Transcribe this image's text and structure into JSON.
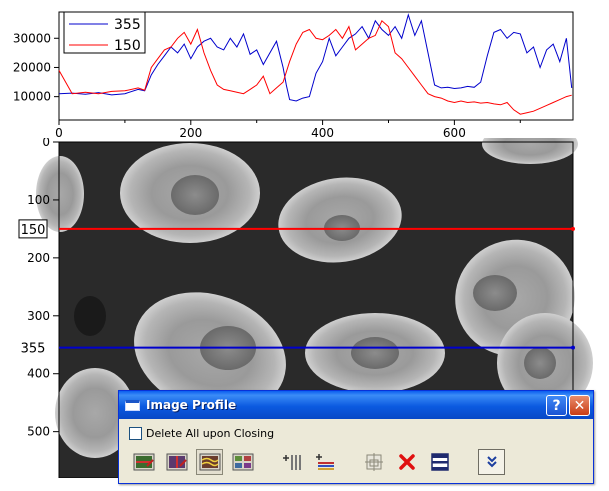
{
  "chart_data": {
    "type": "line",
    "title": "",
    "xlabel": "",
    "ylabel": "",
    "xlim": [
      0,
      780
    ],
    "ylim": [
      2000,
      39000
    ],
    "x_ticks": [
      0,
      200,
      400,
      600
    ],
    "y_ticks": [
      10000,
      20000,
      30000
    ],
    "legend_position": "top-left",
    "series": [
      {
        "name": "355",
        "color": "#0000cc",
        "x": [
          0,
          20,
          40,
          60,
          80,
          100,
          120,
          130,
          140,
          150,
          160,
          170,
          180,
          190,
          200,
          210,
          220,
          230,
          240,
          250,
          260,
          270,
          280,
          290,
          300,
          310,
          320,
          330,
          340,
          345,
          350,
          360,
          370,
          380,
          390,
          400,
          410,
          420,
          430,
          440,
          450,
          460,
          470,
          480,
          490,
          500,
          510,
          520,
          530,
          540,
          550,
          560,
          570,
          580,
          590,
          600,
          610,
          620,
          630,
          640,
          650,
          660,
          670,
          680,
          690,
          700,
          710,
          720,
          730,
          740,
          750,
          760,
          770,
          778
        ],
        "y": [
          11000,
          11200,
          10800,
          11400,
          10600,
          11000,
          12500,
          12000,
          17500,
          21000,
          24000,
          27000,
          25000,
          28000,
          23000,
          27000,
          29000,
          30000,
          27000,
          26000,
          30000,
          27000,
          31500,
          24500,
          26000,
          21000,
          25000,
          29000,
          20000,
          14000,
          9000,
          8500,
          9500,
          10000,
          18000,
          22000,
          30000,
          24000,
          27000,
          30000,
          31500,
          34000,
          30000,
          36000,
          33000,
          31000,
          34000,
          30000,
          38000,
          31000,
          36000,
          25000,
          14000,
          13000,
          13200,
          12800,
          13000,
          13500,
          13200,
          15000,
          24000,
          32000,
          33000,
          30000,
          32000,
          31500,
          25000,
          27000,
          20000,
          26000,
          28000,
          22000,
          30000,
          13000
        ]
      },
      {
        "name": "150",
        "color": "#ff0000",
        "x": [
          0,
          20,
          40,
          60,
          80,
          100,
          120,
          130,
          140,
          150,
          160,
          170,
          180,
          190,
          200,
          210,
          220,
          230,
          240,
          250,
          260,
          270,
          280,
          290,
          300,
          310,
          320,
          330,
          340,
          350,
          360,
          370,
          380,
          390,
          400,
          410,
          420,
          430,
          440,
          450,
          460,
          470,
          480,
          490,
          500,
          510,
          520,
          530,
          540,
          550,
          560,
          570,
          580,
          590,
          600,
          610,
          620,
          630,
          640,
          650,
          660,
          670,
          680,
          690,
          700,
          710,
          720,
          730,
          740,
          750,
          760,
          770,
          778
        ],
        "y": [
          19000,
          11000,
          11500,
          11000,
          11800,
          12000,
          13000,
          12200,
          20000,
          23000,
          26000,
          27000,
          30000,
          32000,
          28000,
          33000,
          25000,
          19000,
          14000,
          12500,
          12000,
          11500,
          11000,
          12500,
          14000,
          17000,
          11000,
          13000,
          15000,
          22000,
          28000,
          32000,
          33000,
          30000,
          29500,
          31000,
          33000,
          30000,
          34000,
          26000,
          28000,
          30000,
          31000,
          36000,
          34000,
          25000,
          23000,
          20000,
          17000,
          14000,
          11000,
          10000,
          9500,
          8500,
          8000,
          8500,
          8000,
          8200,
          7800,
          8000,
          7500,
          7200,
          8000,
          5500,
          4000,
          4500,
          5000,
          6000,
          7000,
          8000,
          9000,
          10000,
          10500
        ]
      }
    ]
  },
  "image_view": {
    "y_ticks": [
      0,
      100,
      200,
      300,
      400,
      500
    ],
    "profile_lines": [
      {
        "label": "150",
        "row": 150,
        "color": "#ff0000"
      },
      {
        "label": "355",
        "row": 355,
        "color": "#0000cc"
      }
    ]
  },
  "dialog": {
    "title": "Image Profile",
    "help_glyph": "?",
    "close_glyph": "✕",
    "delete_checkbox_label": "Delete All upon Closing",
    "delete_checked": false,
    "toolbar_icons": [
      "horizontal-profile-icon",
      "vertical-profile-icon",
      "horizontal-stack-profile-icon",
      "cross-profile-icon",
      "add-vertical-line-icon",
      "add-horizontal-line-icon",
      "graph-settings-icon",
      "delete-icon",
      "split-view-icon",
      "expand-more-icon"
    ]
  }
}
